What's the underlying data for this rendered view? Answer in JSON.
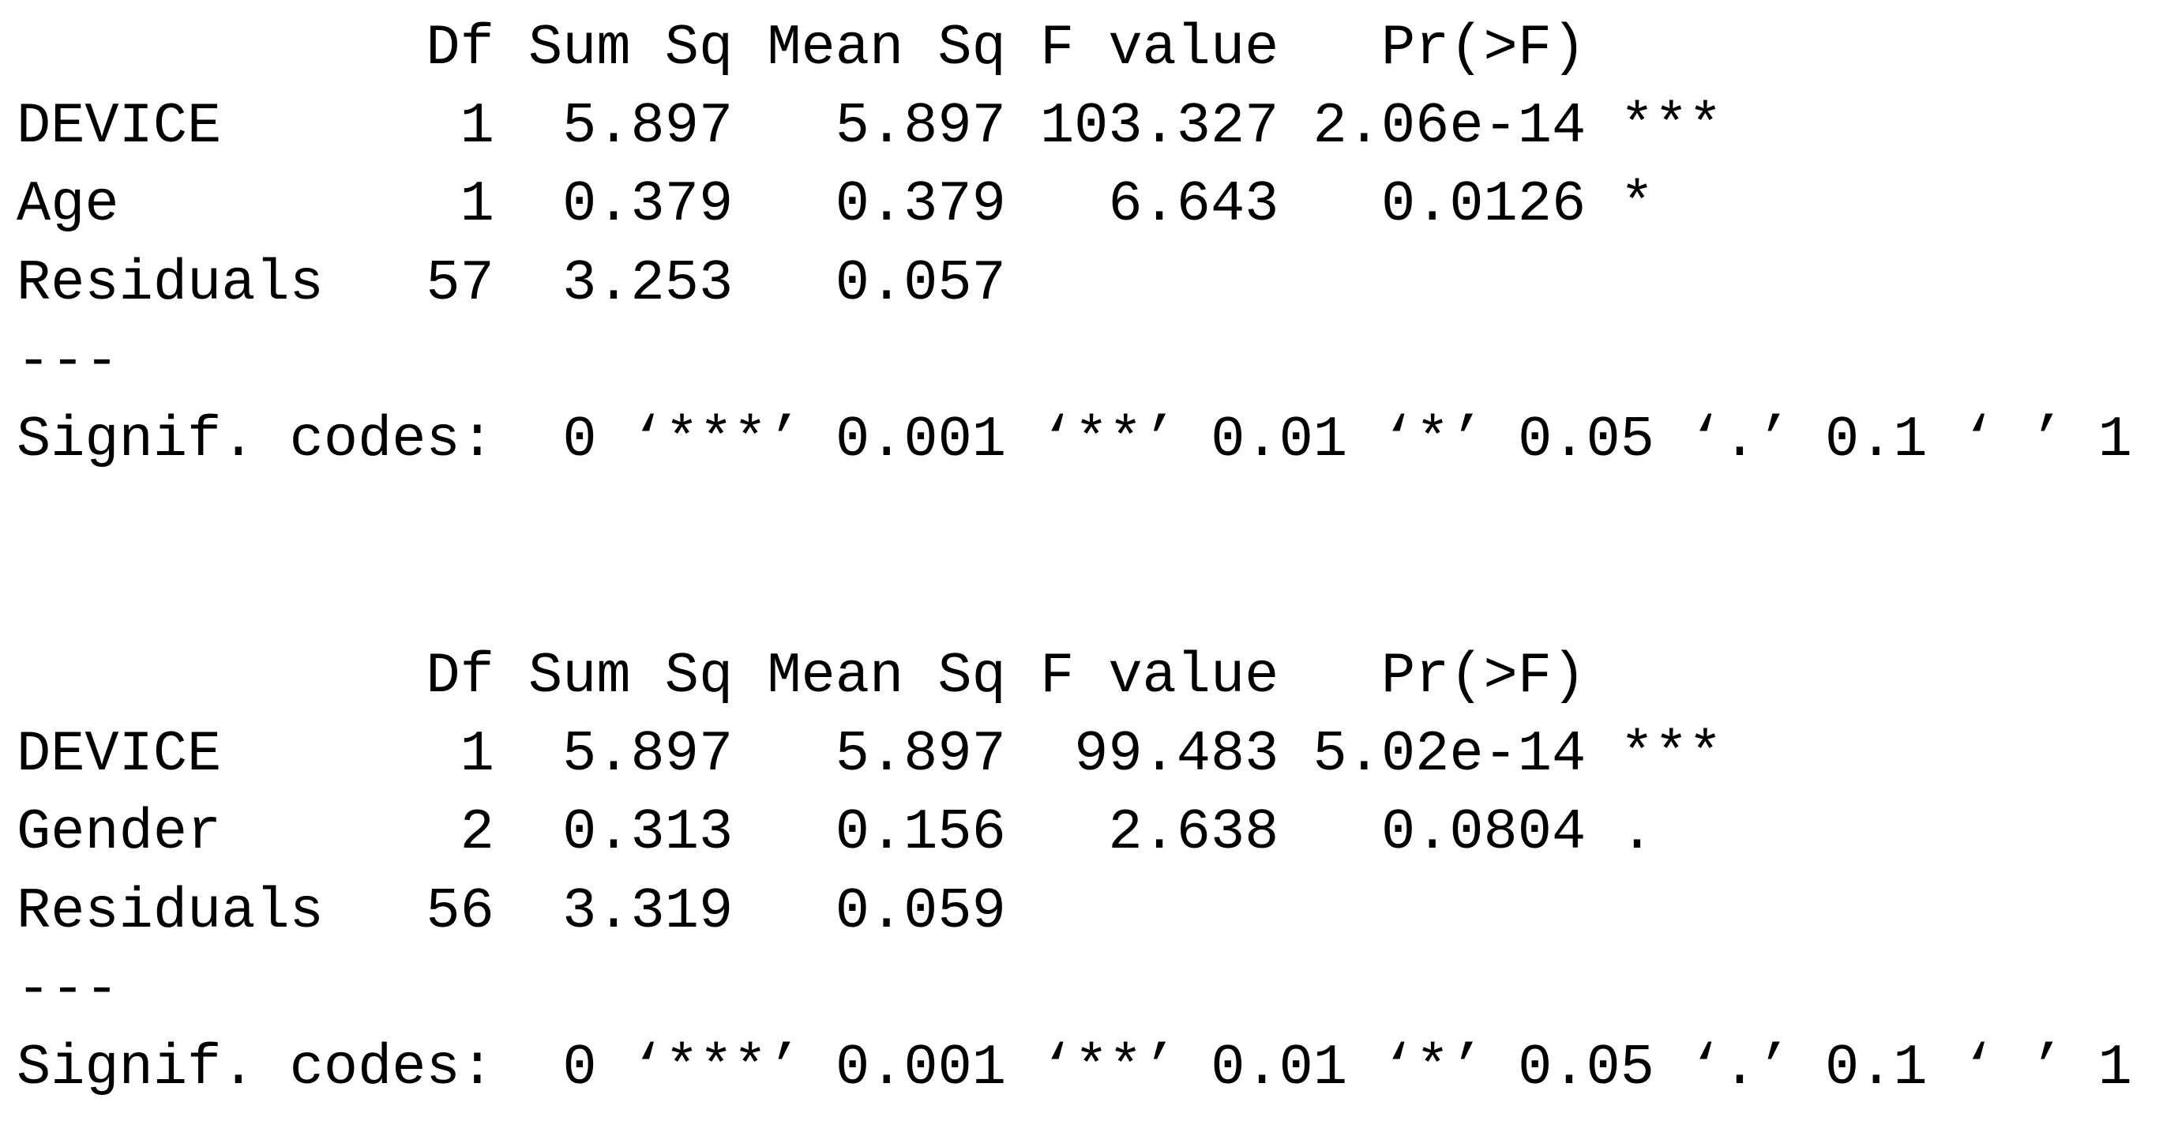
{
  "tables": [
    {
      "header": [
        "Df",
        "Sum Sq",
        "Mean Sq",
        "F value",
        "Pr(>F)"
      ],
      "rows": [
        [
          "DEVICE",
          "1",
          "5.897",
          "5.897",
          "103.327",
          "2.06e-14",
          "***"
        ],
        [
          "Age",
          "1",
          "0.379",
          "0.379",
          "6.643",
          "0.0126",
          "*"
        ],
        [
          "Residuals",
          "57",
          "3.253",
          "0.057"
        ]
      ],
      "separator": "---",
      "signif_codes": "Signif. codes:  0 ‘***’ 0.001 ‘**’ 0.01 ‘*’ 0.05 ‘.’ 0.1 ‘ ’ 1"
    },
    {
      "header": [
        "Df",
        "Sum Sq",
        "Mean Sq",
        "F value",
        "Pr(>F)"
      ],
      "rows": [
        [
          "DEVICE",
          "1",
          "5.897",
          "5.897",
          "99.483",
          "5.02e-14",
          "***"
        ],
        [
          "Gender",
          "2",
          "0.313",
          "0.156",
          "2.638",
          "0.0804",
          "."
        ],
        [
          "Residuals",
          "56",
          "3.319",
          "0.059"
        ]
      ],
      "separator": "---",
      "signif_codes": "Signif. codes:  0 ‘***’ 0.001 ‘**’ 0.01 ‘*’ 0.05 ‘.’ 0.1 ‘ ’ 1"
    }
  ]
}
